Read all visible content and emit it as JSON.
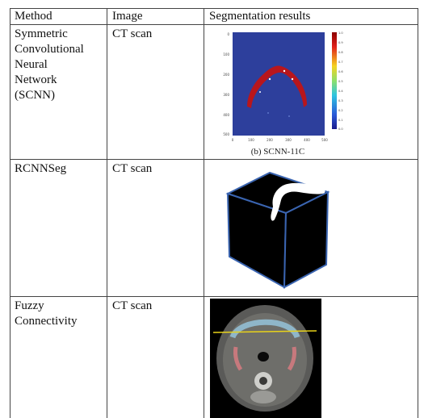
{
  "table": {
    "headers": [
      "Method",
      "Image",
      "Segmentation results"
    ],
    "rows": [
      {
        "method_lines": [
          "Symmetric",
          "Convolutional",
          "Neural",
          "Network",
          "(SCNN)"
        ],
        "image": "CT scan",
        "result_caption": "(b) SCNN-11C",
        "colorbar_ticks": [
          "1.0",
          "0.9",
          "0.8",
          "0.7",
          "0.6",
          "0.5",
          "0.4",
          "0.3",
          "0.2",
          "0.1",
          "0.0"
        ],
        "yaxis_ticks": [
          "0",
          "100",
          "200",
          "300",
          "400",
          "500"
        ],
        "xaxis_ticks": [
          "0",
          "100",
          "200",
          "300",
          "400",
          "500"
        ]
      },
      {
        "method_lines": [
          "RCNNSeg"
        ],
        "image": "CT scan"
      },
      {
        "method_lines": [
          "Fuzzy",
          "Connectivity"
        ],
        "image": "CT scan"
      }
    ]
  },
  "colors": {
    "plot_bg": "#2d3f9c",
    "mask_red": "#b8161c",
    "cube_edge": "#3a64b0",
    "cube_face": "#000000",
    "ct_line": "#e8d21a"
  }
}
